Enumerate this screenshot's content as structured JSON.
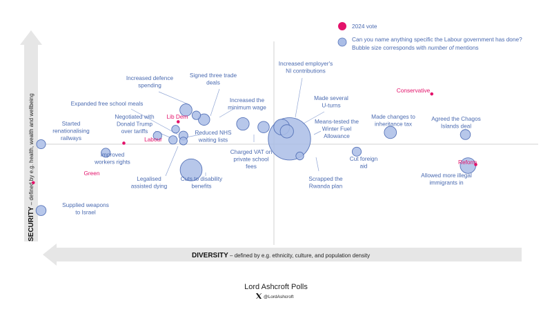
{
  "chart_data": {
    "type": "scatter",
    "title": "",
    "x_axis": {
      "bold": "DIVERSITY",
      "text": " – defined by e.g. ethnicity, culture, and population density"
    },
    "y_axis": {
      "bold": "SECURITY",
      "text": " – defined by e.g. health, wealth and wellbeing"
    },
    "xlim": [
      -1,
      1
    ],
    "ylim": [
      -1,
      1
    ],
    "legend": {
      "position": "top-right",
      "vote": "2024 vote",
      "mentions_line1": "Can you name anything specific the Labour government has done?",
      "mentions_line2_pre": "Bubble size corresponds with ",
      "mentions_line2_em": "number of",
      "mentions_line2_post": " mentions"
    },
    "colors": {
      "bubble_fill": "#aabde6",
      "bubble_stroke": "#5673b8",
      "party": "#e3126a",
      "label": "#4a6ab0"
    },
    "parties": [
      {
        "name": "Conservative",
        "x": 0.61,
        "y": 0.47
      },
      {
        "name": "Reform",
        "x": 0.78,
        "y": -0.19
      },
      {
        "name": "Lib Dem",
        "x": -0.37,
        "y": 0.21
      },
      {
        "name": "Labour",
        "x": -0.58,
        "y": 0.01
      },
      {
        "name": "Green",
        "x": -0.93,
        "y": -0.36
      }
    ],
    "bubbles": [
      {
        "label": [
          "Increased defence",
          "spending"
        ],
        "x": -0.34,
        "y": 0.32,
        "mentions": 14
      },
      {
        "label": [
          "Signed three trade",
          "deals"
        ],
        "x": -0.27,
        "y": 0.23,
        "mentions": 12
      },
      {
        "label": [
          "Expanded free school meals"
        ],
        "x": -0.3,
        "y": 0.27,
        "mentions": 6
      },
      {
        "label": [
          "Negotiated with",
          "Donald Trump",
          "over tariffs"
        ],
        "x": -0.38,
        "y": 0.14,
        "mentions": 5
      },
      {
        "label": [
          "Reduced NHS",
          "waiting lists"
        ],
        "x": -0.35,
        "y": 0.08,
        "mentions": 7
      },
      {
        "label": [],
        "x": -0.39,
        "y": 0.04,
        "mentions": 6
      },
      {
        "label": [],
        "x": -0.35,
        "y": 0.03,
        "mentions": 5
      },
      {
        "label": [
          "Started",
          "renationalising",
          "railways"
        ],
        "x": -0.9,
        "y": 0.0,
        "mentions": 7
      },
      {
        "label": [
          "Improved",
          "workers rights"
        ],
        "x": -0.65,
        "y": -0.08,
        "mentions": 7
      },
      {
        "label": [
          "Increased the",
          "minimum wage"
        ],
        "x": -0.04,
        "y": 0.16,
        "mentions": 12
      },
      {
        "label": [
          "Legalised",
          "assisted dying"
        ],
        "x": -0.45,
        "y": 0.08,
        "mentions": 6
      },
      {
        "label": [
          "Cuts to disability",
          "benefits"
        ],
        "x": -0.32,
        "y": -0.24,
        "mentions": 50
      },
      {
        "label": [
          "Supplied weapons",
          "to Israel"
        ],
        "x": -0.9,
        "y": -0.62,
        "mentions": 9
      },
      {
        "label": [
          "Increased employer's",
          "NI contributions"
        ],
        "x": 0.03,
        "y": 0.16,
        "mentions": 25
      },
      {
        "label": [
          "Made several",
          "U-turns"
        ],
        "x": 0.05,
        "y": 0.12,
        "mentions": 17
      },
      {
        "label": [
          "Means-tested the",
          "Winter Fuel",
          "Allowance"
        ],
        "x": 0.06,
        "y": 0.05,
        "mentions": 200
      },
      {
        "label": [
          "Scrapped the",
          "Rwanda plan"
        ],
        "x": 0.1,
        "y": -0.11,
        "mentions": 5
      },
      {
        "label": [
          "Charged VAT on",
          "private school",
          "fees"
        ],
        "x": -0.12,
        "y": 0.19,
        "mentions": 15
      },
      {
        "label": [
          "Cut foreign",
          "aid"
        ],
        "x": 0.32,
        "y": -0.07,
        "mentions": 7
      },
      {
        "label": [
          "Made changes to",
          "inheritance tax"
        ],
        "x": 0.45,
        "y": 0.11,
        "mentions": 14
      },
      {
        "label": [
          "Agreed the Chagos",
          "Islands deal"
        ],
        "x": 0.74,
        "y": 0.09,
        "mentions": 9
      },
      {
        "label": [
          "Allowed more illegal",
          "immigrants in"
        ],
        "x": 0.75,
        "y": -0.2,
        "mentions": 24
      }
    ]
  },
  "credit": {
    "name": "Lord Ashcroft Polls",
    "x_icon": "x-logo-icon",
    "handle": "@LordAshcroft"
  }
}
